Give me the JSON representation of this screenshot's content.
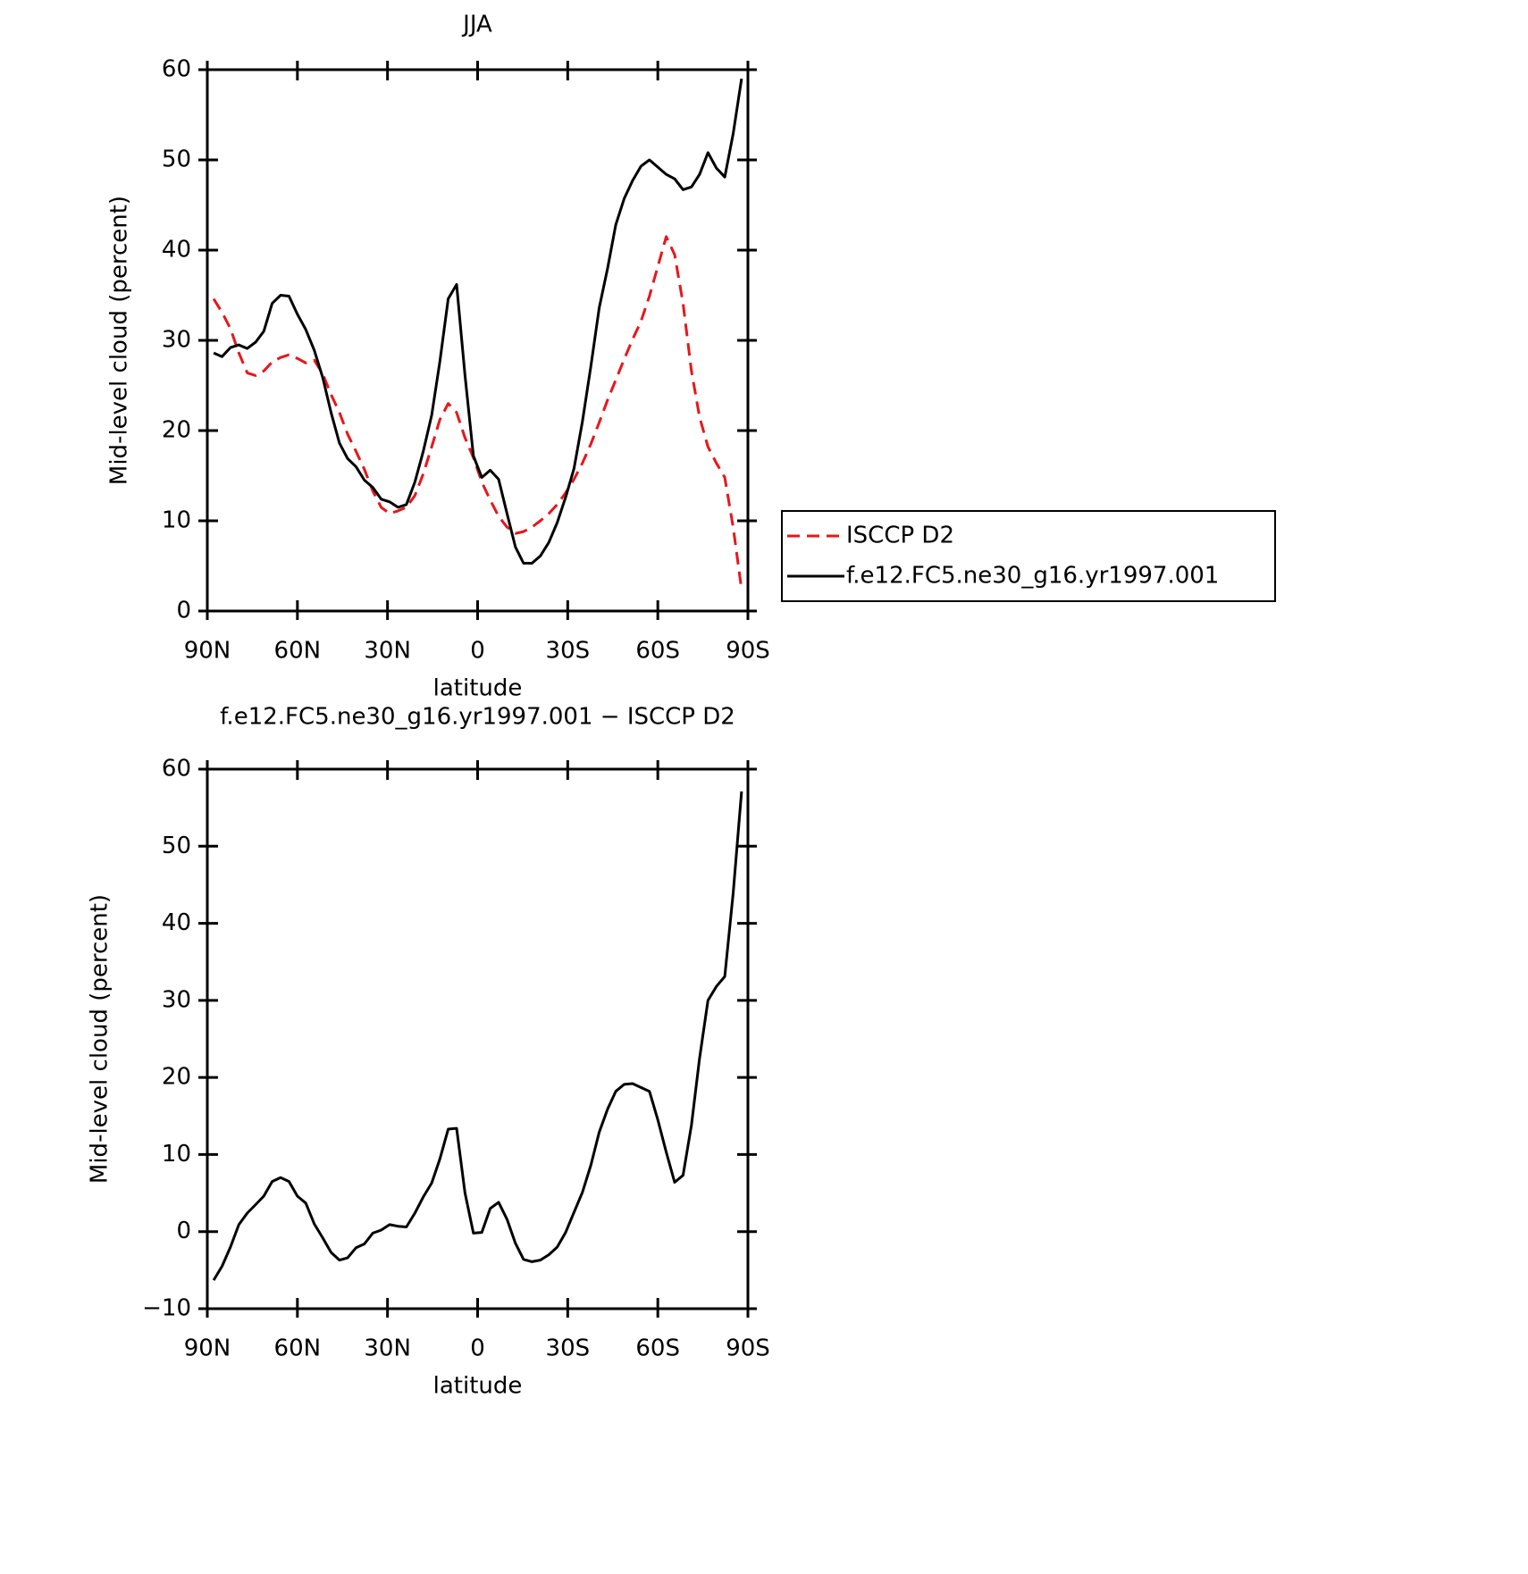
{
  "chart_data": [
    {
      "type": "line",
      "title": "JJA",
      "x_label": "latitude",
      "y_label": "Mid-level cloud (percent)",
      "x": [
        87.9,
        85.1,
        82.3,
        79.5,
        76.7,
        73.9,
        71.2,
        68.4,
        65.6,
        62.8,
        60.0,
        57.2,
        54.4,
        51.6,
        48.8,
        46.0,
        43.3,
        40.5,
        37.7,
        34.9,
        32.1,
        29.3,
        26.5,
        23.7,
        20.9,
        18.1,
        15.3,
        12.6,
        9.8,
        7.0,
        4.2,
        1.4,
        -1.4,
        -4.2,
        -7.0,
        -9.8,
        -12.6,
        -15.3,
        -18.1,
        -20.9,
        -23.7,
        -26.5,
        -29.3,
        -32.1,
        -34.9,
        -37.7,
        -40.5,
        -43.3,
        -46.0,
        -48.8,
        -51.6,
        -54.4,
        -57.2,
        -60.0,
        -62.8,
        -65.6,
        -68.4,
        -71.2,
        -73.9,
        -76.7,
        -79.5,
        -82.3,
        -85.1,
        -87.9
      ],
      "series": [
        {
          "name": "ISCCP D2",
          "color": "#e8161b",
          "line_style": "dashed",
          "values": [
            34.6,
            33.1,
            31.3,
            28.6,
            26.4,
            26.1,
            26.6,
            27.6,
            28.1,
            28.4,
            28.0,
            27.5,
            27.8,
            26.3,
            24.0,
            22.0,
            19.6,
            17.7,
            15.7,
            13.3,
            11.5,
            10.8,
            11.1,
            11.5,
            12.8,
            15.2,
            18.2,
            21.2,
            23.0,
            22.0,
            19.2,
            17.0,
            14.3,
            12.3,
            10.5,
            9.3,
            8.6,
            8.8,
            9.3,
            10.0,
            10.8,
            11.8,
            13.1,
            14.6,
            16.4,
            18.5,
            20.9,
            23.4,
            25.6,
            27.9,
            30.1,
            32.1,
            34.9,
            38.2,
            41.5,
            39.5,
            34.1,
            26.6,
            21.5,
            18.2,
            16.4,
            14.8,
            9.3,
            2.4
          ]
        },
        {
          "name": "f.e12.FC5.ne30_g16.yr1997.001",
          "color": "#000000",
          "line_style": "solid",
          "values": [
            28.6,
            28.2,
            29.2,
            29.5,
            29.1,
            29.8,
            31.0,
            34.1,
            35.0,
            34.9,
            32.9,
            31.2,
            28.9,
            25.9,
            22.0,
            18.6,
            16.9,
            16.0,
            14.5,
            13.7,
            12.4,
            12.1,
            11.5,
            11.8,
            14.3,
            17.7,
            21.7,
            27.6,
            34.6,
            36.2,
            26.1,
            17.2,
            14.8,
            15.6,
            14.6,
            10.8,
            7.1,
            5.3,
            5.3,
            6.1,
            7.6,
            9.8,
            12.6,
            15.8,
            21.0,
            27.1,
            33.6,
            38.0,
            42.8,
            45.7,
            47.7,
            49.3,
            50.0,
            49.2,
            48.4,
            47.9,
            46.7,
            47.0,
            48.4,
            50.8,
            49.1,
            48.1,
            52.9,
            59.0
          ]
        }
      ],
      "xlim": [
        90,
        -90
      ],
      "xticks": [
        {
          "value": 90,
          "label": "90N"
        },
        {
          "value": 60,
          "label": "60N"
        },
        {
          "value": 30,
          "label": "30N"
        },
        0,
        {
          "value": -30,
          "label": "30S"
        },
        {
          "value": -60,
          "label": "60S"
        },
        {
          "value": -90,
          "label": "90S"
        }
      ],
      "ylim": [
        0,
        60
      ],
      "yticks": [
        0,
        10,
        20,
        30,
        40,
        50,
        60
      ],
      "legend": "right"
    },
    {
      "type": "line",
      "title": "f.e12.FC5.ne30_g16.yr1997.001 − ISCCP D2",
      "x_label": "latitude",
      "y_label": "Mid-level cloud (percent)",
      "x": [
        87.9,
        85.1,
        82.3,
        79.5,
        76.7,
        73.9,
        71.2,
        68.4,
        65.6,
        62.8,
        60.0,
        57.2,
        54.4,
        51.6,
        48.8,
        46.0,
        43.3,
        40.5,
        37.7,
        34.9,
        32.1,
        29.3,
        26.5,
        23.7,
        20.9,
        18.1,
        15.3,
        12.6,
        9.8,
        7.0,
        4.2,
        1.4,
        -1.4,
        -4.2,
        -7.0,
        -9.8,
        -12.6,
        -15.3,
        -18.1,
        -20.9,
        -23.7,
        -26.5,
        -29.3,
        -32.1,
        -34.9,
        -37.7,
        -40.5,
        -43.3,
        -46.0,
        -48.8,
        -51.6,
        -54.4,
        -57.2,
        -60.0,
        -62.8,
        -65.6,
        -68.4,
        -71.2,
        -73.9,
        -76.7,
        -79.5,
        -82.3,
        -85.1,
        -87.9
      ],
      "series": [
        {
          "color": "#000000",
          "line_style": "solid",
          "values": [
            -6.3,
            -4.5,
            -2.0,
            0.9,
            2.4,
            3.5,
            4.6,
            6.5,
            7.0,
            6.5,
            4.6,
            3.7,
            1.0,
            -0.8,
            -2.7,
            -3.7,
            -3.4,
            -2.1,
            -1.6,
            -0.2,
            0.2,
            0.9,
            0.7,
            0.6,
            2.4,
            4.5,
            6.3,
            9.4,
            13.3,
            13.4,
            5.0,
            -0.2,
            -0.1,
            3.0,
            3.8,
            1.6,
            -1.5,
            -3.6,
            -3.9,
            -3.7,
            -3.0,
            -2.0,
            -0.1,
            2.5,
            5.1,
            8.6,
            12.9,
            15.9,
            18.2,
            19.1,
            19.2,
            18.7,
            18.2,
            14.5,
            10.3,
            6.4,
            7.3,
            13.8,
            22.5,
            30.0,
            31.8,
            33.1,
            43.9,
            57.1
          ]
        }
      ],
      "xlim": [
        90,
        -90
      ],
      "xticks": [
        {
          "value": 90,
          "label": "90N"
        },
        {
          "value": 60,
          "label": "60N"
        },
        {
          "value": 30,
          "label": "30N"
        },
        0,
        {
          "value": -30,
          "label": "30S"
        },
        {
          "value": -60,
          "label": "60S"
        },
        {
          "value": -90,
          "label": "90S"
        }
      ],
      "ylim": [
        -10,
        60
      ],
      "yticks": [
        {
          "value": -10,
          "label": "−10"
        },
        0,
        10,
        20,
        30,
        40,
        50,
        60
      ]
    }
  ]
}
